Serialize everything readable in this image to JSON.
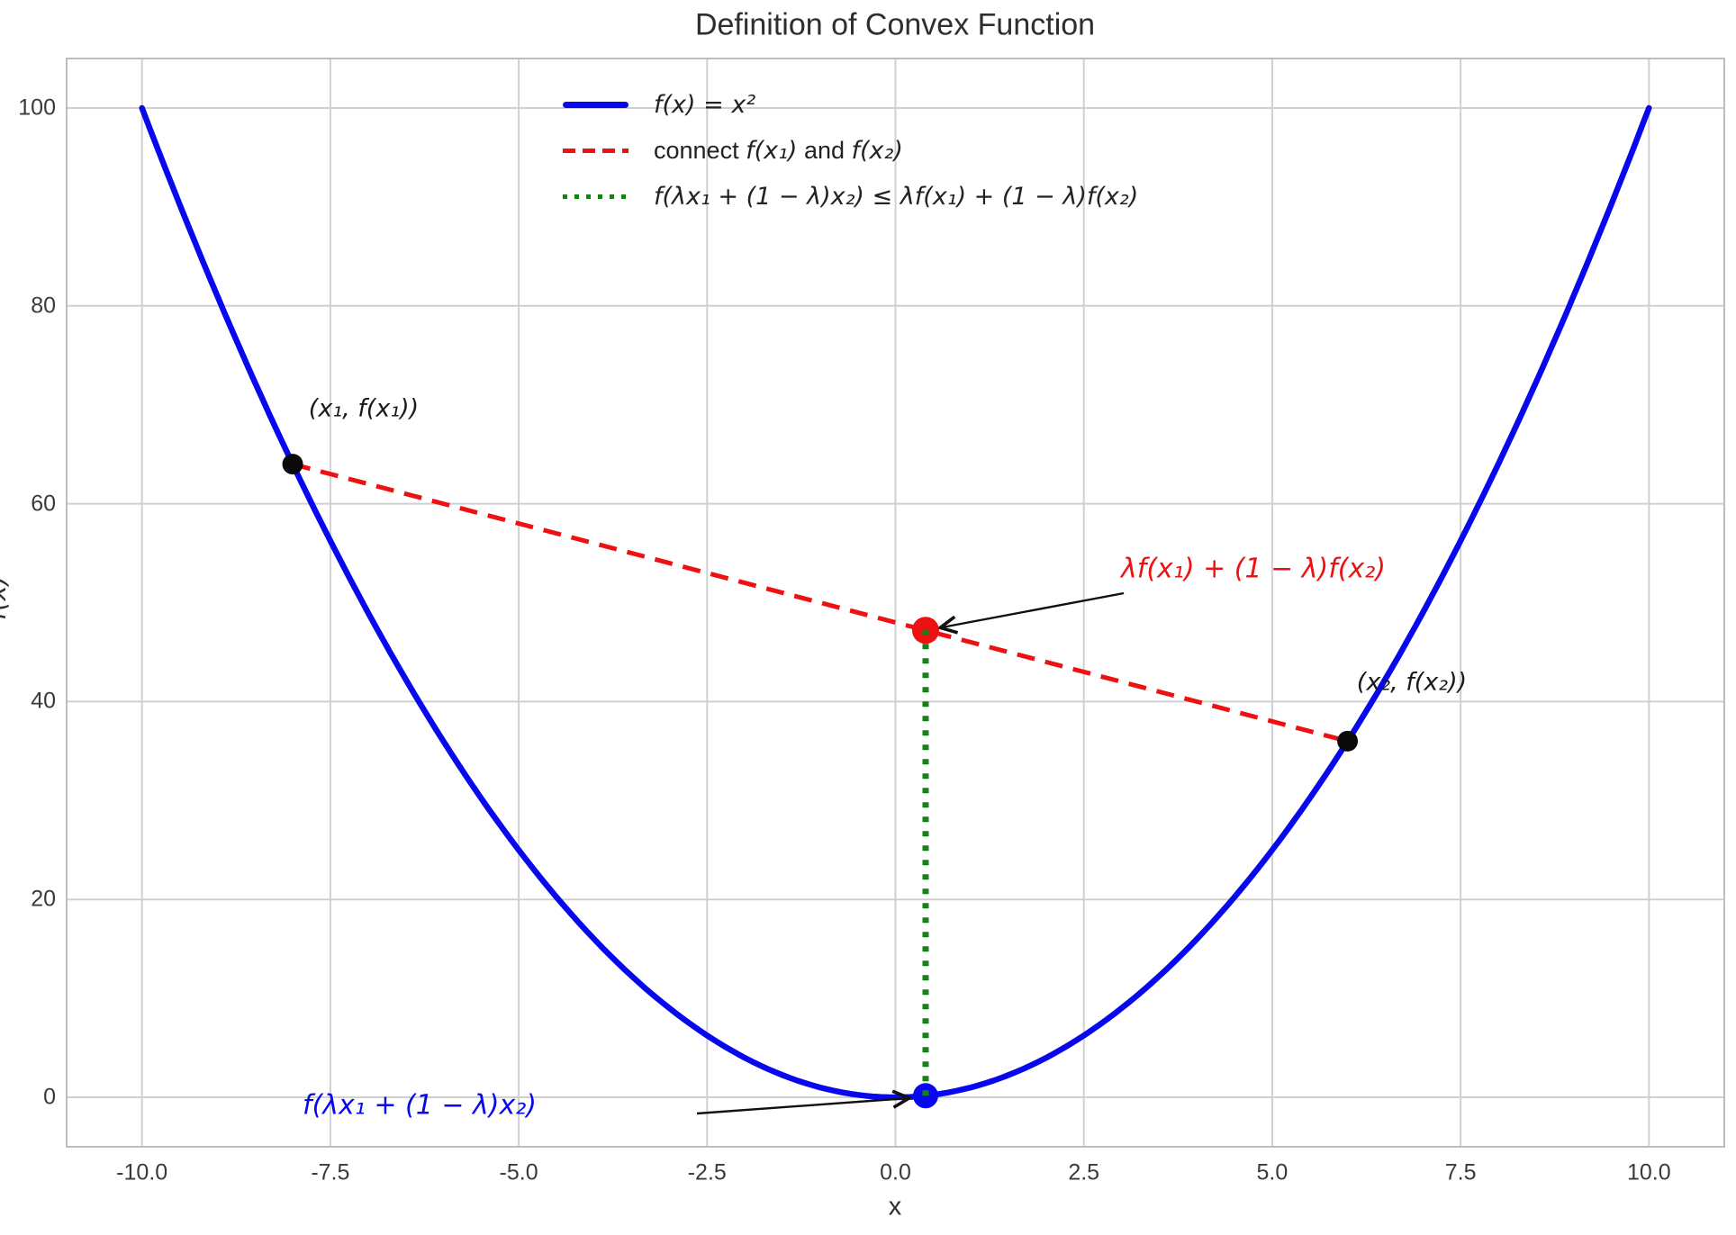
{
  "title": "Definition of Convex Function",
  "axes": {
    "xlabel": "x",
    "ylabel": "f(x)",
    "xtick_labels": [
      "-10.0",
      "-7.5",
      "-5.0",
      "-2.5",
      "0.0",
      "2.5",
      "5.0",
      "7.5",
      "10.0"
    ],
    "xtick_values": [
      -10,
      -7.5,
      -5,
      -2.5,
      0,
      2.5,
      5,
      7.5,
      10
    ],
    "ytick_labels": [
      "0",
      "20",
      "40",
      "60",
      "80",
      "100"
    ],
    "ytick_values": [
      0,
      20,
      40,
      60,
      80,
      100
    ]
  },
  "colors": {
    "curve": "#0808ee",
    "chord": "#ee1111",
    "inequality": "#118511",
    "point_black": "#0a0a0a",
    "grid": "#d0d0d0",
    "spine": "#bdbdbd",
    "arrow": "#111111"
  },
  "legend": {
    "items": [
      {
        "label": "f(x) = x²",
        "color": "#0808ee",
        "style": "solid"
      },
      {
        "parts": [
          "connect ",
          "f(x₁)",
          " and ",
          "f(x₂)"
        ],
        "color": "#ee1111",
        "style": "dashed"
      },
      {
        "label": "f(λx₁ + (1 − λ)x₂) ≤ λf(x₁) + (1 − λ)f(x₂)",
        "color": "#118511",
        "style": "dotted"
      }
    ]
  },
  "annotations": {
    "point1_label": "(x₁, f(x₁))",
    "point2_label": "(x₂, f(x₂))",
    "upper_label": "λf(x₁) + (1 − λ)f(x₂)",
    "lower_label": "f(λx₁ + (1 − λ)x₂)"
  },
  "chart_data": {
    "type": "line",
    "title": "Definition of Convex Function",
    "xlabel": "x",
    "ylabel": "f(x)",
    "xlim": [
      -11,
      11
    ],
    "ylim": [
      -5,
      105
    ],
    "grid": true,
    "legend_position": "upper center-left",
    "lambda": 0.4,
    "series": [
      {
        "name": "f(x) = x²",
        "kind": "function",
        "expr": "x^2",
        "x_range": [
          -10,
          10
        ],
        "color": "#0808ee",
        "style": "solid",
        "width": 6.5
      },
      {
        "name": "connect f(x₁) and f(x₂)",
        "kind": "segment",
        "points": [
          [
            -8,
            64
          ],
          [
            6,
            36
          ]
        ],
        "color": "#ee1111",
        "style": "dashed",
        "width": 5
      },
      {
        "name": "f(λx₁ + (1 − λ)x₂) ≤ λf(x₁) + (1 − λ)f(x₂)",
        "kind": "segment",
        "points": [
          [
            0.4,
            0.16
          ],
          [
            0.4,
            47.2
          ]
        ],
        "color": "#118511",
        "style": "dotted",
        "width": 7
      }
    ],
    "points": [
      {
        "name": "point-x1",
        "label": "(x₁, f(x₁))",
        "x": -8,
        "y": 64,
        "color": "#0a0a0a",
        "radius": 11.5
      },
      {
        "name": "point-x2",
        "label": "(x₂, f(x₂))",
        "x": 6,
        "y": 36,
        "color": "#0a0a0a",
        "radius": 11.5
      },
      {
        "name": "point-upper-interpolation",
        "label": "λf(x₁) + (1 − λ)f(x₂)",
        "x": 0.4,
        "y": 47.2,
        "color": "#ee1111",
        "radius": 15
      },
      {
        "name": "point-lower-function-value",
        "label": "f(λx₁ + (1 − λ)x₂)",
        "x": 0.4,
        "y": 0.16,
        "color": "#0808ee",
        "radius": 14
      }
    ]
  }
}
